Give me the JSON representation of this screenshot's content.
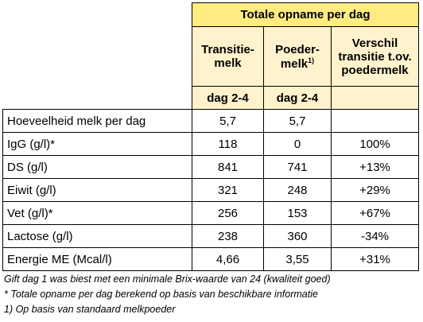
{
  "table": {
    "title": "Totale opname per dag",
    "headers": [
      [
        "Transitie-",
        "melk"
      ],
      [
        "Poeder-",
        "melk",
        "1)"
      ],
      [
        "Verschil",
        "transitie t.ov.",
        "poedermelk"
      ]
    ],
    "subheaders": [
      "dag  2-4",
      "dag 2-4"
    ],
    "rows": [
      [
        "Hoeveelheid melk per dag",
        "5,7",
        "5,7",
        null
      ],
      [
        "IgG (g/l)*",
        "118",
        "0",
        "100%"
      ],
      [
        "DS (g/l)",
        "841",
        "741",
        "+13%"
      ],
      [
        "Eiwit (g/l)",
        "321",
        "248",
        "+29%"
      ],
      [
        "Vet (g/l)*",
        "256",
        "153",
        "+67%"
      ],
      [
        "Lactose (g/l)",
        "238",
        "360",
        "-34%"
      ],
      [
        "Energie ME (Mcal/l)",
        "4,66",
        "3,55",
        "+31%"
      ]
    ]
  },
  "footnotes": [
    "Gift dag 1 was biest met een minimale Brix-waarde van 24 (kwaliteit goed)",
    "* Totale opname per dag berekend op basis van beschikbare informatie",
    "1) Op basis van standaard melkpoeder"
  ]
}
